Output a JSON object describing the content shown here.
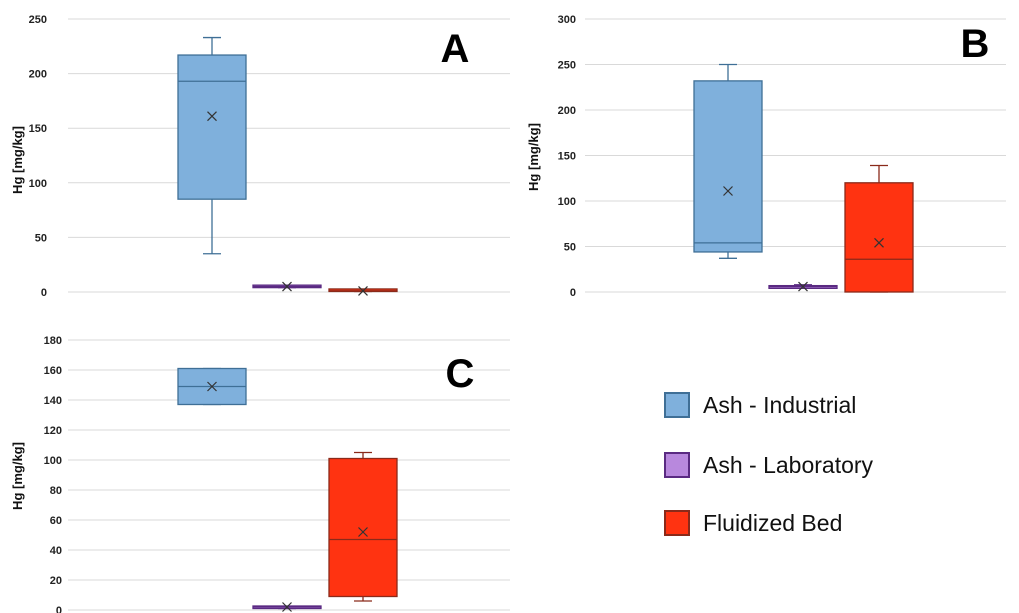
{
  "legend": {
    "items": [
      {
        "label": "Ash - Industrial",
        "color": "#7fb0dc",
        "stroke": "#3f6f96"
      },
      {
        "label": "Ash - Laboratory",
        "color": "#b888dd",
        "stroke": "#5a2a82"
      },
      {
        "label": "Fluidized Bed",
        "color": "#ff3311",
        "stroke": "#8a2a1a"
      }
    ]
  },
  "chart_data": [
    {
      "type": "box",
      "panel_label": "A",
      "ylabel": "Hg [mg/kg]",
      "ylim": [
        0,
        250
      ],
      "yticks": [
        0,
        50,
        100,
        150,
        200,
        250
      ],
      "grid": true,
      "series": [
        {
          "name": "Ash - Industrial",
          "min": 35,
          "q1": 85,
          "median": 193,
          "q3": 217,
          "max": 233,
          "mean": 161
        },
        {
          "name": "Ash - Laboratory",
          "min": 4,
          "q1": 4,
          "median": 5,
          "q3": 6,
          "max": 6,
          "mean": 5
        },
        {
          "name": "Fluidized Bed",
          "min": 0.5,
          "q1": 0.5,
          "median": 1,
          "q3": 1.5,
          "max": 1.5,
          "mean": 1
        }
      ]
    },
    {
      "type": "box",
      "panel_label": "B",
      "ylabel": "Hg [mg/kg]",
      "ylim": [
        0,
        300
      ],
      "yticks": [
        0,
        50,
        100,
        150,
        200,
        250,
        300
      ],
      "grid": true,
      "series": [
        {
          "name": "Ash - Industrial",
          "min": 37,
          "q1": 44,
          "median": 54,
          "q3": 232,
          "max": 250,
          "mean": 111
        },
        {
          "name": "Ash - Laboratory",
          "min": 4,
          "q1": 4,
          "median": 6,
          "q3": 7,
          "max": 8,
          "mean": 6
        },
        {
          "name": "Fluidized Bed",
          "min": 0,
          "q1": 0,
          "median": 36,
          "q3": 120,
          "max": 139,
          "mean": 54
        }
      ]
    },
    {
      "type": "box",
      "panel_label": "C",
      "ylabel": "Hg [mg/kg]",
      "ylim": [
        0,
        180
      ],
      "yticks": [
        0,
        20,
        40,
        60,
        80,
        100,
        120,
        140,
        160,
        180
      ],
      "grid": true,
      "series": [
        {
          "name": "Ash - Industrial",
          "min": 137,
          "q1": 137,
          "median": 149,
          "q3": 161,
          "max": 161,
          "mean": 149
        },
        {
          "name": "Ash - Laboratory",
          "min": 1,
          "q1": 1,
          "median": 2,
          "q3": 2.5,
          "max": 2.5,
          "mean": 2
        },
        {
          "name": "Fluidized Bed",
          "min": 6,
          "q1": 9,
          "median": 47,
          "q3": 101,
          "max": 105,
          "mean": 52
        }
      ]
    }
  ]
}
